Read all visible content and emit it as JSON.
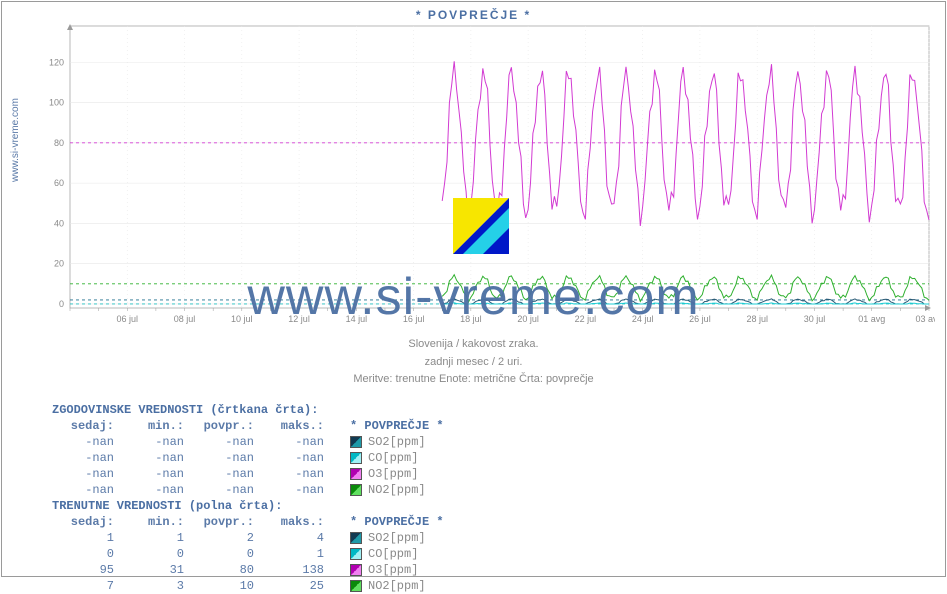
{
  "site_label": "www.si-vreme.com",
  "chart": {
    "title": "* POVPREČJE *",
    "subtitle_line1": "Slovenija / kakovost zraka.",
    "subtitle_line2": "zadnji mesec / 2 uri.",
    "subtitle_line3": "Meritve: trenutne  Enote: metrične  Črta: povprečje",
    "watermark": "www.si-vreme.com",
    "background_color": "#ffffff",
    "title_color": "#4b6fa3",
    "subtitle_color": "#8a8a8a",
    "grid_color": "#e8e8e8",
    "axis_color": "#9a9a9a",
    "tick_label_color": "#8a8a8a",
    "ylim": [
      -2,
      138
    ],
    "yticks": [
      0,
      20,
      40,
      60,
      80,
      100,
      120
    ],
    "x_days": 30,
    "x_start_day": 4,
    "x_start_month": "jul",
    "xticks": [
      "06 jul",
      "08 jul",
      "10 jul",
      "12 jul",
      "14 jul",
      "16 jul",
      "18 jul",
      "20 jul",
      "22 jul",
      "24 jul",
      "26 jul",
      "28 jul",
      "30 jul",
      "01 avg",
      "03 avg"
    ],
    "data_start_day_offset": 13,
    "dashed_refs": [
      {
        "y": 80,
        "color": "#d23ad2"
      },
      {
        "y": 10,
        "color": "#2fb02f"
      },
      {
        "y": 2,
        "color": "#1f6f8c"
      },
      {
        "y": 0,
        "color": "#1fbfbf"
      }
    ],
    "series": [
      {
        "name": "SO2[ppm]",
        "color_line": "#2a5a75",
        "swatch_css": "linear-gradient(135deg,#123a52 50%,#1f9aa8 50%)",
        "mean": 1,
        "amp": 1.5,
        "noise": 0.6
      },
      {
        "name": "CO[ppm]",
        "color_line": "#1ecfd6",
        "swatch_css": "linear-gradient(135deg,#00b8c4 50%,#a0f0f4 50%)",
        "mean": 0,
        "amp": 0.5,
        "noise": 0.3
      },
      {
        "name": "O3[ppm]",
        "color_line": "#d23ad2",
        "swatch_css": "linear-gradient(135deg,#b000b0 50%,#f080f0 50%)",
        "mean": 80,
        "amp": 38,
        "noise": 12
      },
      {
        "name": "NO2[ppm]",
        "color_line": "#2fb02f",
        "swatch_css": "linear-gradient(135deg,#0a8a0a 50%,#60e060 50%)",
        "mean": 8,
        "amp": 6,
        "noise": 2.5
      }
    ]
  },
  "tables": {
    "hist_title": "ZGODOVINSKE VREDNOSTI (črtkana črta):",
    "curr_title": "TRENUTNE VREDNOSTI (polna črta):",
    "columns": [
      "sedaj:",
      "min.:",
      "povpr.:",
      "maks.:"
    ],
    "legend_header": "* POVPREČJE *",
    "hist_rows": [
      {
        "vals": [
          "-nan",
          "-nan",
          "-nan",
          "-nan"
        ],
        "series": 0
      },
      {
        "vals": [
          "-nan",
          "-nan",
          "-nan",
          "-nan"
        ],
        "series": 1
      },
      {
        "vals": [
          "-nan",
          "-nan",
          "-nan",
          "-nan"
        ],
        "series": 2
      },
      {
        "vals": [
          "-nan",
          "-nan",
          "-nan",
          "-nan"
        ],
        "series": 3
      }
    ],
    "curr_rows": [
      {
        "vals": [
          "1",
          "1",
          "2",
          "4"
        ],
        "series": 0
      },
      {
        "vals": [
          "0",
          "0",
          "0",
          "1"
        ],
        "series": 1
      },
      {
        "vals": [
          "95",
          "31",
          "80",
          "138"
        ],
        "series": 2
      },
      {
        "vals": [
          "7",
          "3",
          "10",
          "25"
        ],
        "series": 3
      }
    ]
  }
}
